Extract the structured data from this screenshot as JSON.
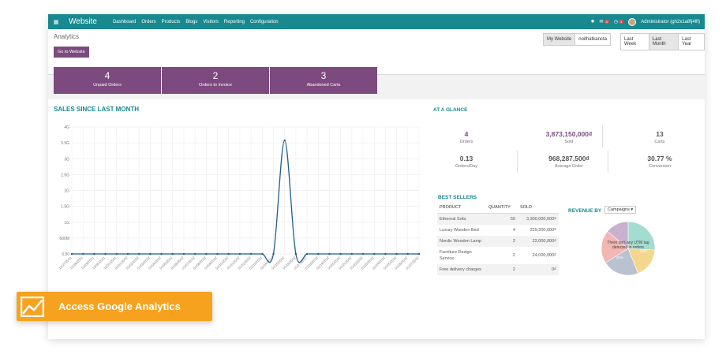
{
  "topbar": {
    "brand": "Website",
    "menu": [
      "Dashboard",
      "Orders",
      "Products",
      "Blogs",
      "Visitors",
      "Reporting",
      "Configuration"
    ],
    "notif_count_1": "4",
    "notif_count_2": "1",
    "user": "Administrator (gh2x1a8fj4lfl)"
  },
  "control": {
    "breadcrumb": "Analytics",
    "go_to_website": "Go to Website",
    "websites": [
      "My Website",
      "noithatkancta"
    ],
    "periods": [
      "Last Week",
      "Last Month",
      "Last Year"
    ],
    "active_period": "Last Month"
  },
  "kpis": [
    {
      "value": "4",
      "label": "Unpaid Orders"
    },
    {
      "value": "2",
      "label": "Orders to Invoice"
    },
    {
      "value": "3",
      "label": "Abandoned Carts"
    }
  ],
  "sales": {
    "title": "SALES SINCE LAST MONTH"
  },
  "chart_data": {
    "type": "line",
    "title": "SALES SINCE LAST MONTH",
    "ylim": [
      0,
      4000000000
    ],
    "y_ticks": [
      "4G",
      "3.5G",
      "3G",
      "2.5G",
      "2G",
      "1.5G",
      "1G",
      "500M",
      "0.00"
    ],
    "x": [
      "12/27/2021",
      "12/28/2021",
      "12/29/2021",
      "12/30/2021",
      "12/31/2021",
      "01/01/2022",
      "01/02/2022",
      "01/03/2022",
      "01/04/2022",
      "01/05/2022",
      "01/06/2022",
      "01/07/2022",
      "01/08/2022",
      "01/09/2022",
      "01/10/2022",
      "01/11/2022",
      "01/12/2022",
      "01/13/2022",
      "01/14/2022",
      "01/15/2022",
      "01/16/2022",
      "01/17/2022",
      "01/18/2022",
      "01/19/2022",
      "01/20/2022",
      "01/21/2022",
      "01/22/2022",
      "01/23/2022",
      "01/24/2022",
      "01/25/2022",
      "01/26/2022",
      "01/27/2022"
    ],
    "series": [
      {
        "values": [
          0,
          0,
          0,
          0,
          0,
          0,
          0,
          0,
          0,
          0,
          0,
          0,
          0,
          0,
          0,
          0,
          0,
          0,
          0,
          3580000000,
          0,
          0,
          0,
          0,
          0,
          0,
          0,
          0,
          0,
          0,
          0,
          0
        ]
      }
    ],
    "grid": true,
    "color": "#1f5f8b"
  },
  "glance": {
    "title": "AT A GLANCE",
    "stats": [
      {
        "value": "4",
        "label": "Orders"
      },
      {
        "value": "3,873,150,000₫",
        "label": "Sold"
      },
      {
        "value": "13",
        "label": "Carts"
      },
      {
        "value": "0.13",
        "label": "Orders/Day"
      },
      {
        "value": "968,287,500₫",
        "label": "Average Order"
      },
      {
        "value": "30.77 %",
        "label": "Conversion"
      }
    ]
  },
  "best_sellers": {
    "title": "BEST SELLERS",
    "headers": [
      "PRODUCT",
      "QUANTITY",
      "SOLD"
    ],
    "rows": [
      {
        "product": "Ethernal Sofa",
        "qty": "50",
        "sold": "3,300,000,000₫"
      },
      {
        "product": "Luxury Wooden Bed",
        "qty": "4",
        "sold": "229,200,000₫"
      },
      {
        "product": "Nordic Wooden Lamp",
        "qty": "2",
        "sold": "22,000,000₫"
      },
      {
        "product": "Furniture Design Service",
        "qty": "2",
        "sold": "24,000,000₫"
      },
      {
        "product": "Free delivery charges",
        "qty": "2",
        "sold": "0₫"
      }
    ]
  },
  "revenue": {
    "title": "REVENUE BY",
    "dropdown": "Campaigns",
    "empty_note": "There isn't any UTM tag detected in orders",
    "slice_labels": [
      "20%",
      "20%"
    ],
    "colors": [
      "#a4dccf",
      "#f3d78e",
      "#b9c3d0",
      "#f2b6b3",
      "#c9b1cf"
    ]
  },
  "cta": {
    "label": "Access Google Analytics"
  }
}
